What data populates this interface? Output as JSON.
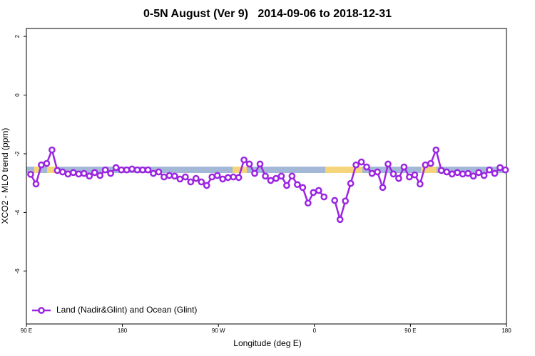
{
  "chart_data": {
    "type": "line",
    "title": "0-5N August (Ver 9)   2014-09-06 to 2018-12-31",
    "x_label": "Longitude (deg E)",
    "y_label": "XCO2 - MLO trend (ppm)",
    "xlim": [
      90,
      540
    ],
    "ylim": [
      -7.8,
      2.27
    ],
    "xticks": [
      {
        "value": 90,
        "label": "90 E"
      },
      180,
      {
        "value": 270,
        "label": "90 W"
      },
      {
        "value": 360,
        "label": "0"
      },
      {
        "value": 450,
        "label": "90 E"
      },
      {
        "value": 540,
        "label": "180"
      }
    ],
    "yticks": [
      2,
      0,
      -2,
      -4,
      -6
    ],
    "legend": "bottom-left",
    "x": [
      94,
      99,
      104,
      109,
      114,
      119,
      124,
      129,
      134,
      139,
      144,
      149,
      154,
      159,
      164,
      169,
      174,
      179,
      184,
      189,
      194,
      199,
      204,
      209,
      214,
      219,
      224,
      229,
      234,
      239,
      244,
      249,
      254,
      259,
      264,
      269,
      274,
      279,
      284,
      289,
      294,
      299,
      304,
      309,
      314,
      319,
      324,
      329,
      334,
      339,
      344,
      349,
      354,
      359,
      364,
      369,
      374,
      379,
      384,
      389,
      394,
      399,
      404,
      409,
      414,
      419,
      424,
      429,
      434,
      439,
      444,
      449,
      454,
      459,
      464,
      469,
      474,
      479,
      484,
      489,
      494,
      499,
      504,
      509,
      514,
      519,
      524,
      529,
      534,
      539
    ],
    "series": [
      {
        "name": "Land (Nadir&Glint) and Ocean (Glint)",
        "color": "#9b25e2",
        "values": [
          -2.7,
          -3.03,
          -2.38,
          -2.33,
          -1.87,
          -2.57,
          -2.62,
          -2.69,
          -2.64,
          -2.69,
          -2.67,
          -2.76,
          -2.64,
          -2.74,
          -2.55,
          -2.67,
          -2.47,
          -2.55,
          -2.55,
          -2.52,
          -2.55,
          -2.55,
          -2.55,
          -2.67,
          -2.62,
          -2.79,
          -2.74,
          -2.76,
          -2.86,
          -2.79,
          -2.96,
          -2.84,
          -2.96,
          -3.08,
          -2.79,
          -2.74,
          -2.86,
          -2.81,
          -2.79,
          -2.81,
          -2.21,
          -2.35,
          -2.67,
          -2.35,
          -2.76,
          -2.91,
          -2.84,
          -2.76,
          -3.08,
          -2.76,
          -3.05,
          -3.15,
          -3.68,
          -3.32,
          -3.25,
          -3.47,
          null,
          -3.59,
          -4.24,
          -3.61,
          -3.01,
          -2.38,
          -2.28,
          -2.45,
          -2.67,
          -2.62,
          -3.15,
          -2.35,
          -2.69,
          -2.84,
          -2.45,
          -2.79,
          -2.72,
          -3.03,
          -2.38,
          -2.33,
          -1.87,
          -2.57,
          -2.62,
          -2.69,
          -2.64,
          -2.69,
          -2.67,
          -2.76,
          -2.64,
          -2.74,
          -2.55,
          -2.67,
          -2.47,
          -2.55
        ]
      }
    ]
  }
}
